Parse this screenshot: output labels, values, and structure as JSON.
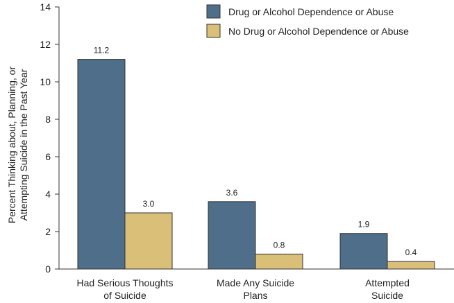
{
  "chart_data": {
    "type": "bar",
    "categories": [
      [
        "Had Serious Thoughts",
        "of Suicide"
      ],
      [
        "Made Any Suicide",
        "Plans"
      ],
      [
        "Attempted",
        "Suicide"
      ]
    ],
    "series": [
      {
        "name": "Drug or Alcohol Dependence or Abuse",
        "color": "#4e6e8a",
        "values": [
          11.2,
          3.6,
          1.9
        ],
        "labels": [
          "11.2",
          "3.6",
          "1.9"
        ]
      },
      {
        "name": "No Drug or Alcohol Dependence or Abuse",
        "color": "#d9bf78",
        "values": [
          3.0,
          0.8,
          0.4
        ],
        "labels": [
          "3.0",
          "0.8",
          "0.4"
        ]
      }
    ],
    "ylabel": [
      "Percent Thinking about, Planning, or",
      "Attempting Suicide in the Past Year"
    ],
    "xlabel": "",
    "ylim": [
      0,
      14
    ],
    "yticks": [
      0,
      2,
      4,
      6,
      8,
      10,
      12,
      14
    ],
    "grid": false,
    "legend_position": "top-right"
  }
}
